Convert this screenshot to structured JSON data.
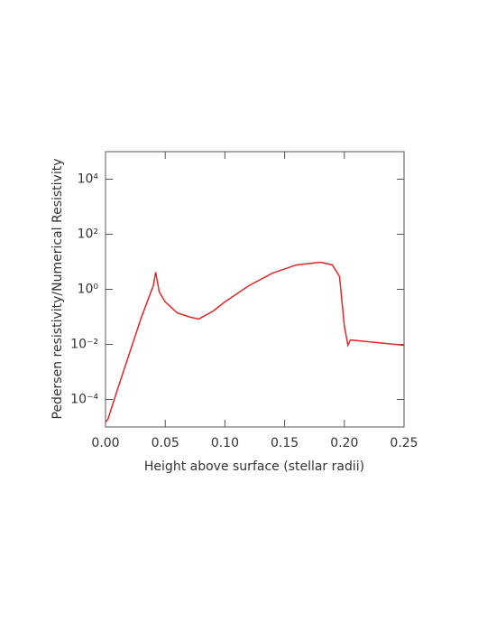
{
  "chart_data": {
    "type": "line",
    "x_label": "Height above surface (stellar radii)",
    "y_label": "Pedersen resistivity/Numerical Resistivity",
    "log_y": true,
    "xlim": [
      0,
      0.25
    ],
    "xticks": [
      {
        "value": 0,
        "label": "0.00"
      },
      {
        "value": 0.05,
        "label": "0.05"
      },
      {
        "value": 0.1,
        "label": "0.10"
      },
      {
        "value": 0.15,
        "label": "0.15"
      },
      {
        "value": 0.2,
        "label": "0.20"
      },
      {
        "value": 0.25,
        "label": "0.25"
      }
    ],
    "ylim": [
      1e-05,
      100000
    ],
    "yticks": [
      {
        "value": 0.0001,
        "label": "10⁻⁴"
      },
      {
        "value": 0.01,
        "label": "10⁻²"
      },
      {
        "value": 1,
        "label": "10⁰"
      },
      {
        "value": 100,
        "label": "10²"
      },
      {
        "value": 10000,
        "label": "10⁴"
      }
    ],
    "series": [
      {
        "color": "#e02828",
        "x": [
          0,
          0.002,
          0.01,
          0.02,
          0.03,
          0.04,
          0.042,
          0.045,
          0.05,
          0.06,
          0.07,
          0.078,
          0.09,
          0.1,
          0.12,
          0.14,
          0.16,
          0.18,
          0.19,
          0.196,
          0.2,
          0.203,
          0.205,
          0.25
        ],
        "values": [
          1.5e-05,
          1.9e-05,
          0.00023,
          0.0047,
          0.095,
          1.35,
          4.2,
          0.8,
          0.35,
          0.14,
          0.1,
          0.083,
          0.16,
          0.35,
          1.35,
          3.9,
          7.7,
          9.6,
          7.7,
          2.9,
          0.046,
          0.0093,
          0.0145,
          0.0093
        ]
      }
    ]
  }
}
